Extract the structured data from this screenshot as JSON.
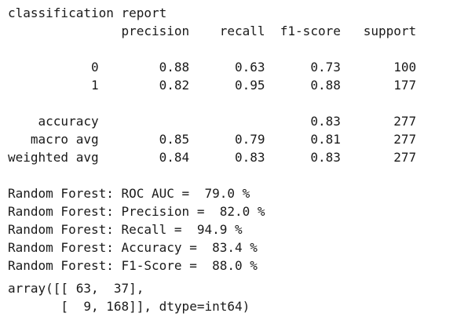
{
  "report": {
    "title": "classification report",
    "headers": [
      "precision",
      "recall",
      "f1-score",
      "support"
    ],
    "rows": [
      {
        "label": "0",
        "precision": "0.88",
        "recall": "0.63",
        "f1": "0.73",
        "support": "100"
      },
      {
        "label": "1",
        "precision": "0.82",
        "recall": "0.95",
        "f1": "0.88",
        "support": "177"
      }
    ],
    "summary": [
      {
        "label": "accuracy",
        "precision": "",
        "recall": "",
        "f1": "0.83",
        "support": "277"
      },
      {
        "label": "macro avg",
        "precision": "0.85",
        "recall": "0.79",
        "f1": "0.81",
        "support": "277"
      },
      {
        "label": "weighted avg",
        "precision": "0.84",
        "recall": "0.83",
        "f1": "0.83",
        "support": "277"
      }
    ]
  },
  "metrics": [
    "Random Forest: ROC AUC =  79.0 %",
    "Random Forest: Precision =  82.0 %",
    "Random Forest: Recall =  94.9 %",
    "Random Forest: Accuracy =  83.4 %",
    "Random Forest: F1-Score =  88.0 %"
  ],
  "confusion_matrix": {
    "line1": "array([[ 63,  37],",
    "line2": "       [  9, 168]], dtype=int64)"
  }
}
